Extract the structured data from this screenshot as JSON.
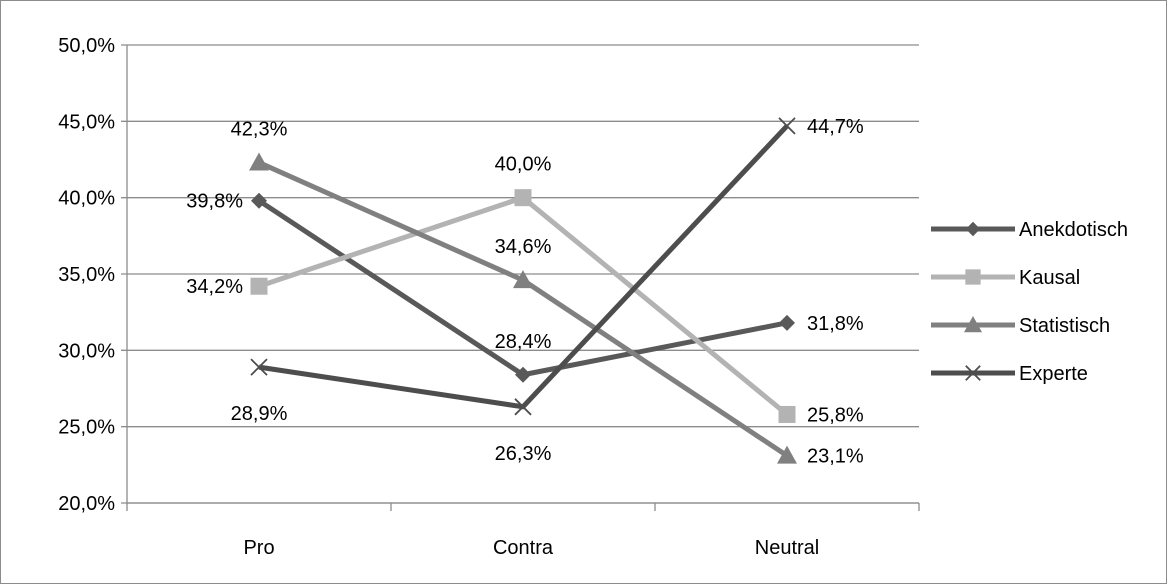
{
  "chart_data": {
    "type": "line",
    "categories": [
      "Pro",
      "Contra",
      "Neutral"
    ],
    "ylim": [
      0.2,
      0.5
    ],
    "yticks": [
      "20,0%",
      "25,0%",
      "30,0%",
      "35,0%",
      "40,0%",
      "45,0%",
      "50,0%"
    ],
    "grid": true,
    "legend_position": "right",
    "series": [
      {
        "name": "Anekdotisch",
        "values": [
          0.398,
          0.284,
          0.318
        ],
        "labels": [
          "39,8%",
          "28,4%",
          "31,8%"
        ],
        "color": "#595959",
        "marker": "diamond"
      },
      {
        "name": "Kausal",
        "values": [
          0.342,
          0.4,
          0.258
        ],
        "labels": [
          "34,2%",
          "40,0%",
          "25,8%"
        ],
        "color": "#b3b3b3",
        "marker": "square"
      },
      {
        "name": "Statistisch",
        "values": [
          0.423,
          0.346,
          0.231
        ],
        "labels": [
          "42,3%",
          "34,6%",
          "23,1%"
        ],
        "color": "#808080",
        "marker": "triangle"
      },
      {
        "name": "Experte",
        "values": [
          0.289,
          0.263,
          0.447
        ],
        "labels": [
          "28,9%",
          "26,3%",
          "44,7%"
        ],
        "color": "#4d4d4d",
        "marker": "x"
      }
    ]
  }
}
